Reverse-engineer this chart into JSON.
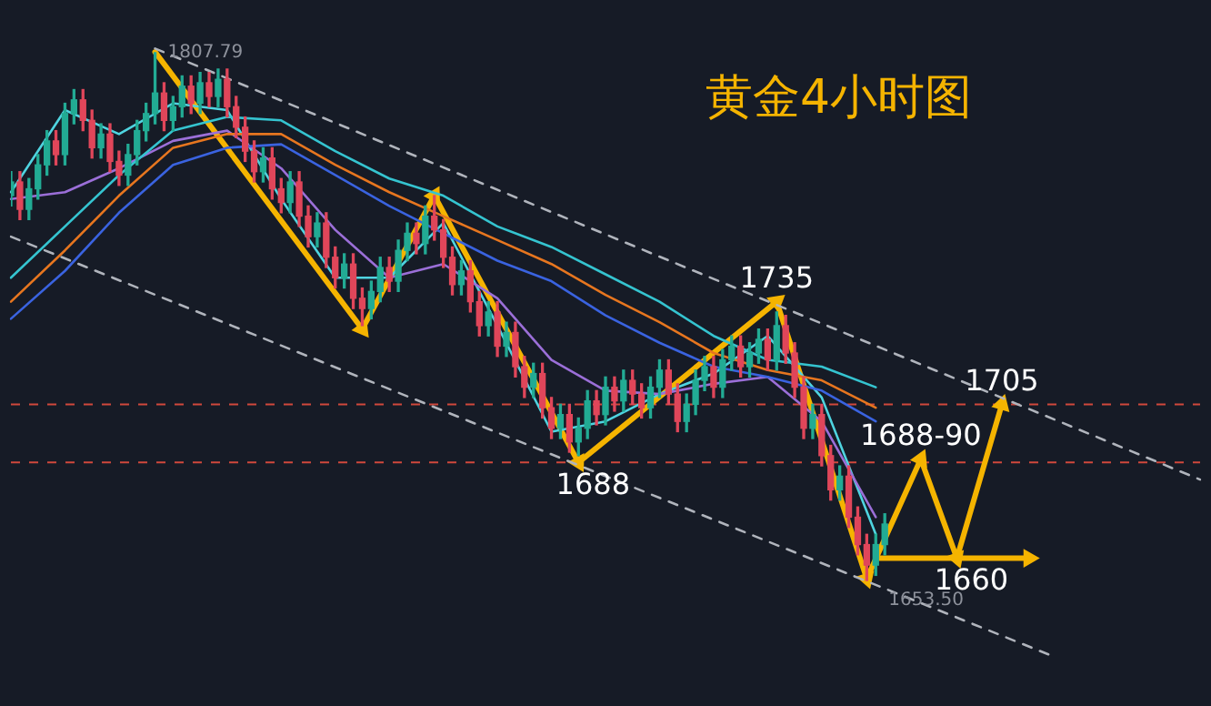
{
  "chart_data": {
    "type": "candlestick",
    "title": "黄金4小时图",
    "categories": [
      null,
      null,
      null,
      null,
      null,
      null,
      null,
      null,
      null,
      null,
      null,
      null,
      null,
      null,
      null,
      null,
      null,
      null,
      null,
      null,
      null,
      null,
      null,
      null,
      null,
      null,
      null,
      null,
      null,
      null,
      null,
      null,
      null,
      null,
      null,
      null,
      null,
      null,
      null,
      null,
      null,
      null,
      null,
      null,
      null,
      null,
      null,
      null,
      null,
      null,
      null,
      null,
      null,
      null,
      null,
      null,
      null,
      null,
      null,
      null,
      null,
      null,
      null,
      null,
      null,
      null,
      null,
      null,
      null,
      null,
      null,
      null,
      null,
      null,
      null,
      null,
      null,
      null,
      null,
      null,
      null,
      null,
      null,
      null,
      null,
      null,
      null,
      null,
      null,
      null,
      null,
      null,
      null,
      null,
      null,
      null,
      null,
      null,
      null,
      null,
      null,
      null,
      null,
      null,
      null,
      null,
      null,
      null,
      null,
      null,
      null,
      null,
      null,
      null,
      null,
      null,
      null,
      null,
      null,
      null,
      null,
      null,
      null,
      null,
      null,
      null,
      null,
      null,
      null,
      null,
      null,
      null,
      null
    ],
    "ohlc": [
      [
        1766,
        1773,
        1763,
        1770
      ],
      [
        1770,
        1773,
        1759,
        1762
      ],
      [
        1762,
        1771,
        1759,
        1768
      ],
      [
        1768,
        1778,
        1765,
        1775
      ],
      [
        1775,
        1785,
        1772,
        1782
      ],
      [
        1782,
        1785,
        1775,
        1778
      ],
      [
        1778,
        1793,
        1775,
        1790
      ],
      [
        1790,
        1797,
        1787,
        1794
      ],
      [
        1794,
        1797,
        1785,
        1788
      ],
      [
        1788,
        1791,
        1777,
        1780
      ],
      [
        1780,
        1787,
        1777,
        1784
      ],
      [
        1784,
        1787,
        1773,
        1776
      ],
      [
        1776,
        1779,
        1769,
        1772
      ],
      [
        1772,
        1781,
        1769,
        1778
      ],
      [
        1778,
        1788,
        1775,
        1785
      ],
      [
        1785,
        1793,
        1782,
        1790
      ],
      [
        1790,
        1807.79,
        1787,
        1796
      ],
      [
        1796,
        1799,
        1785,
        1788
      ],
      [
        1788,
        1795,
        1785,
        1792
      ],
      [
        1792,
        1801,
        1789,
        1798
      ],
      [
        1798,
        1801,
        1790,
        1793
      ],
      [
        1793,
        1802,
        1790,
        1799
      ],
      [
        1799,
        1802,
        1792,
        1795
      ],
      [
        1795,
        1803,
        1792,
        1800
      ],
      [
        1800,
        1803,
        1789,
        1792
      ],
      [
        1792,
        1795,
        1783,
        1786
      ],
      [
        1786,
        1789,
        1776,
        1779
      ],
      [
        1779,
        1782,
        1770,
        1773
      ],
      [
        1773,
        1780,
        1770,
        1777
      ],
      [
        1777,
        1780,
        1765,
        1768
      ],
      [
        1768,
        1771,
        1761,
        1764
      ],
      [
        1764,
        1773,
        1761,
        1770
      ],
      [
        1770,
        1773,
        1757,
        1760
      ],
      [
        1760,
        1763,
        1751,
        1754
      ],
      [
        1754,
        1761,
        1751,
        1758
      ],
      [
        1758,
        1761,
        1745,
        1748
      ],
      [
        1748,
        1751,
        1739,
        1742
      ],
      [
        1742,
        1749,
        1739,
        1746
      ],
      [
        1746,
        1749,
        1733,
        1736
      ],
      [
        1736,
        1739,
        1728,
        1733
      ],
      [
        1733,
        1741,
        1730,
        1738
      ],
      [
        1738,
        1748,
        1735,
        1745
      ],
      [
        1745,
        1748,
        1738,
        1741
      ],
      [
        1741,
        1753,
        1738,
        1750
      ],
      [
        1750,
        1758,
        1747,
        1755
      ],
      [
        1755,
        1758,
        1749,
        1752
      ],
      [
        1752,
        1763,
        1749,
        1760
      ],
      [
        1760,
        1766,
        1753,
        1756
      ],
      [
        1756,
        1759,
        1745,
        1748
      ],
      [
        1748,
        1751,
        1737,
        1740
      ],
      [
        1740,
        1747,
        1737,
        1744
      ],
      [
        1744,
        1747,
        1732,
        1735
      ],
      [
        1735,
        1738,
        1725,
        1728
      ],
      [
        1728,
        1735,
        1725,
        1732
      ],
      [
        1732,
        1735,
        1719,
        1722
      ],
      [
        1722,
        1729,
        1719,
        1726
      ],
      [
        1726,
        1729,
        1713,
        1716
      ],
      [
        1716,
        1719,
        1707,
        1710
      ],
      [
        1710,
        1717,
        1707,
        1714
      ],
      [
        1714,
        1717,
        1701,
        1704
      ],
      [
        1704,
        1707,
        1695,
        1698
      ],
      [
        1698,
        1705,
        1695,
        1702
      ],
      [
        1702,
        1705,
        1691,
        1694
      ],
      [
        1694,
        1701,
        1690,
        1698
      ],
      [
        1698,
        1709,
        1695,
        1706
      ],
      [
        1706,
        1709,
        1699,
        1702
      ],
      [
        1702,
        1713,
        1699,
        1710
      ],
      [
        1710,
        1713,
        1703,
        1706
      ],
      [
        1706,
        1715,
        1703,
        1712
      ],
      [
        1712,
        1715,
        1705,
        1708
      ],
      [
        1708,
        1711,
        1701,
        1704
      ],
      [
        1704,
        1713,
        1701,
        1710
      ],
      [
        1710,
        1718,
        1707,
        1715
      ],
      [
        1715,
        1718,
        1705,
        1708
      ],
      [
        1708,
        1711,
        1697,
        1700
      ],
      [
        1700,
        1708,
        1697,
        1705
      ],
      [
        1705,
        1715,
        1702,
        1712
      ],
      [
        1712,
        1719,
        1709,
        1716
      ],
      [
        1716,
        1719,
        1707,
        1710
      ],
      [
        1710,
        1721,
        1707,
        1718
      ],
      [
        1718,
        1725,
        1715,
        1722
      ],
      [
        1722,
        1725,
        1713,
        1716
      ],
      [
        1716,
        1723,
        1713,
        1720
      ],
      [
        1720,
        1727,
        1717,
        1724
      ],
      [
        1724,
        1727,
        1715,
        1718
      ],
      [
        1718,
        1732,
        1715,
        1728
      ],
      [
        1728,
        1731,
        1717,
        1720
      ],
      [
        1720,
        1723,
        1707,
        1710
      ],
      [
        1710,
        1713,
        1695,
        1698
      ],
      [
        1698,
        1705,
        1695,
        1702
      ],
      [
        1702,
        1705,
        1687,
        1690
      ],
      [
        1690,
        1693,
        1677,
        1680
      ],
      [
        1680,
        1687,
        1677,
        1684
      ],
      [
        1684,
        1687,
        1669,
        1672
      ],
      [
        1672,
        1675,
        1661,
        1664
      ],
      [
        1664,
        1667,
        1653.5,
        1658
      ],
      [
        1658,
        1667,
        1655,
        1664
      ],
      [
        1664,
        1673,
        1661,
        1670
      ],
      null,
      null,
      null,
      null,
      null,
      null,
      null,
      null,
      null,
      null,
      null,
      null,
      null,
      null,
      null,
      null,
      null,
      null,
      null,
      null,
      null,
      null,
      null,
      null,
      null,
      null,
      null,
      null,
      null,
      null,
      null,
      null,
      null,
      null,
      null
    ],
    "colors": [
      "#22ab94",
      "#e0465a",
      "#22ab94",
      "#22ab94",
      "#22ab94",
      "#e0465a",
      "#22ab94",
      "#22ab94",
      "#e0465a",
      "#e0465a",
      "#22ab94",
      "#e0465a",
      "#e0465a",
      "#22ab94",
      "#22ab94",
      "#22ab94",
      "#22ab94",
      "#e0465a",
      "#22ab94",
      "#22ab94",
      "#e0465a",
      "#22ab94",
      "#e0465a",
      "#22ab94",
      "#e0465a",
      "#e0465a",
      "#e0465a",
      "#e0465a",
      "#22ab94",
      "#e0465a",
      "#e0465a",
      "#22ab94",
      "#e0465a",
      "#e0465a",
      "#22ab94",
      "#e0465a",
      "#e0465a",
      "#22ab94",
      "#e0465a",
      "#e0465a",
      "#22ab94",
      "#22ab94",
      "#e0465a",
      "#22ab94",
      "#22ab94",
      "#e0465a",
      "#22ab94",
      "#e0465a",
      "#e0465a",
      "#e0465a",
      "#22ab94",
      "#e0465a",
      "#e0465a",
      "#22ab94",
      "#e0465a",
      "#22ab94",
      "#e0465a",
      "#e0465a",
      "#22ab94",
      "#e0465a",
      "#e0465a",
      "#22ab94",
      "#e0465a",
      "#22ab94",
      "#22ab94",
      "#e0465a",
      "#22ab94",
      "#e0465a",
      "#22ab94",
      "#e0465a",
      "#e0465a",
      "#22ab94",
      "#22ab94",
      "#e0465a",
      "#e0465a",
      "#22ab94",
      "#22ab94",
      "#22ab94",
      "#e0465a",
      "#22ab94",
      "#22ab94",
      "#e0465a",
      "#22ab94",
      "#22ab94",
      "#e0465a",
      "#22ab94",
      "#e0465a",
      "#e0465a",
      "#e0465a",
      "#22ab94",
      "#e0465a",
      "#e0465a",
      "#22ab94",
      "#e0465a",
      "#e0465a",
      "#e0465a",
      "#22ab94",
      "#22ab94",
      null,
      null,
      null,
      null,
      null,
      null,
      null,
      null,
      null,
      null,
      null,
      null,
      null,
      null,
      null,
      null,
      null,
      null,
      null,
      null,
      null,
      null,
      null,
      null,
      null,
      null,
      null,
      null,
      null,
      null,
      null,
      null,
      null,
      null,
      null
    ],
    "series": [
      {
        "type": "line",
        "color": "#35c4d0",
        "values": [
          1742,
          null,
          null,
          null,
          null,
          null,
          1757,
          null,
          null,
          null,
          null,
          null,
          1772,
          null,
          null,
          null,
          null,
          null,
          1785,
          null,
          null,
          null,
          null,
          null,
          1789,
          null,
          null,
          null,
          null,
          null,
          1788,
          null,
          null,
          null,
          null,
          null,
          1779,
          null,
          null,
          null,
          null,
          null,
          1771,
          null,
          null,
          null,
          null,
          null,
          1766,
          null,
          null,
          null,
          null,
          null,
          1757,
          null,
          null,
          null,
          null,
          null,
          1751,
          null,
          null,
          null,
          null,
          null,
          1743,
          null,
          null,
          null,
          null,
          null,
          1735,
          null,
          null,
          null,
          null,
          null,
          1725,
          null,
          null,
          null,
          null,
          null,
          1718,
          null,
          null,
          null,
          null,
          null,
          1716,
          null,
          null,
          null,
          null,
          null,
          1710,
          null,
          null,
          null,
          null,
          null,
          null,
          null,
          null,
          null,
          null,
          null,
          null,
          null,
          null,
          null,
          null,
          null,
          null,
          null,
          null,
          null,
          null,
          null,
          null,
          null,
          null,
          null,
          null,
          null,
          null,
          null,
          null,
          null,
          null,
          null,
          null
        ]
      },
      {
        "type": "line",
        "color": "#e7761f",
        "values": [
          1735,
          null,
          null,
          null,
          null,
          null,
          1750,
          null,
          null,
          null,
          null,
          null,
          1766,
          null,
          null,
          null,
          null,
          null,
          1780,
          null,
          null,
          null,
          null,
          null,
          1784,
          null,
          null,
          null,
          null,
          null,
          1784,
          null,
          null,
          null,
          null,
          null,
          1775,
          null,
          null,
          null,
          null,
          null,
          1767,
          null,
          null,
          null,
          null,
          null,
          1760,
          null,
          null,
          null,
          null,
          null,
          1753,
          null,
          null,
          null,
          null,
          null,
          1746,
          null,
          null,
          null,
          null,
          null,
          1737,
          null,
          null,
          null,
          null,
          null,
          1729,
          null,
          null,
          null,
          null,
          null,
          1720,
          null,
          null,
          null,
          null,
          null,
          1715,
          null,
          null,
          null,
          null,
          null,
          1712,
          null,
          null,
          null,
          null,
          null,
          1704,
          null,
          null,
          null,
          null,
          null,
          null,
          null,
          null,
          null,
          null,
          null,
          null,
          null,
          null,
          null,
          null,
          null,
          null,
          null,
          null,
          null,
          null,
          null,
          null,
          null,
          null,
          null,
          null,
          null,
          null,
          null,
          null,
          null,
          null,
          null,
          null
        ]
      },
      {
        "type": "line",
        "color": "#3a63e0",
        "values": [
          1730,
          null,
          null,
          null,
          null,
          null,
          1744,
          null,
          null,
          null,
          null,
          null,
          1761,
          null,
          null,
          null,
          null,
          null,
          1775,
          null,
          null,
          null,
          null,
          null,
          1780,
          null,
          null,
          null,
          null,
          null,
          1781,
          null,
          null,
          null,
          null,
          null,
          1772,
          null,
          null,
          null,
          null,
          null,
          1763,
          null,
          null,
          null,
          null,
          null,
          1755,
          null,
          null,
          null,
          null,
          null,
          1747,
          null,
          null,
          null,
          null,
          null,
          1741,
          null,
          null,
          null,
          null,
          null,
          1731,
          null,
          null,
          null,
          null,
          null,
          1723,
          null,
          null,
          null,
          null,
          null,
          1716,
          null,
          null,
          null,
          null,
          null,
          1713,
          null,
          null,
          null,
          null,
          null,
          1709,
          null,
          null,
          null,
          null,
          null,
          1700,
          null,
          null,
          null,
          null,
          null,
          null,
          null,
          null,
          null,
          null,
          null,
          null,
          null,
          null,
          null,
          null,
          null,
          null,
          null,
          null,
          null,
          null,
          null,
          null,
          null,
          null,
          null,
          null,
          null,
          null,
          null,
          null,
          null,
          null,
          null,
          null
        ]
      },
      {
        "type": "line",
        "color": "#9b6fd8",
        "values": [
          1765,
          null,
          null,
          null,
          null,
          null,
          1767,
          null,
          null,
          null,
          null,
          null,
          1774,
          null,
          null,
          null,
          null,
          null,
          1782,
          null,
          null,
          null,
          null,
          null,
          1785,
          null,
          null,
          null,
          null,
          null,
          1774,
          null,
          null,
          null,
          null,
          null,
          1756,
          null,
          null,
          null,
          null,
          null,
          1742,
          null,
          null,
          null,
          null,
          null,
          1746,
          null,
          null,
          null,
          null,
          null,
          1736,
          null,
          null,
          null,
          null,
          null,
          1718,
          null,
          null,
          null,
          null,
          null,
          1709,
          null,
          null,
          null,
          null,
          null,
          1708,
          null,
          null,
          null,
          null,
          null,
          1711,
          null,
          null,
          null,
          null,
          null,
          1713,
          null,
          null,
          null,
          null,
          null,
          1700,
          null,
          null,
          null,
          null,
          null,
          1672,
          null,
          null,
          null,
          null,
          null,
          null,
          null,
          null,
          null,
          null,
          null,
          null,
          null,
          null,
          null,
          null,
          null,
          null,
          null,
          null,
          null,
          null,
          null,
          null,
          null,
          null,
          null,
          null,
          null,
          null,
          null,
          null,
          null,
          null,
          null,
          null
        ]
      },
      {
        "type": "line",
        "color": "#4fd4e0",
        "values": [
          1767,
          null,
          null,
          null,
          null,
          null,
          1791,
          null,
          null,
          null,
          null,
          null,
          1784,
          null,
          null,
          null,
          null,
          null,
          1793,
          null,
          null,
          null,
          null,
          null,
          1791,
          null,
          null,
          null,
          null,
          null,
          1765,
          null,
          null,
          null,
          null,
          null,
          1742,
          null,
          null,
          null,
          null,
          null,
          1742,
          null,
          null,
          null,
          null,
          null,
          1758,
          null,
          null,
          null,
          null,
          null,
          1728,
          null,
          null,
          null,
          null,
          null,
          1697,
          null,
          null,
          null,
          null,
          null,
          1700,
          null,
          null,
          null,
          null,
          null,
          1708,
          null,
          null,
          null,
          null,
          null,
          1714,
          null,
          null,
          null,
          null,
          null,
          1725,
          null,
          null,
          null,
          null,
          null,
          1707,
          null,
          null,
          null,
          null,
          null,
          1667,
          null,
          null,
          null,
          null,
          null,
          null,
          null,
          null,
          null,
          null,
          null,
          null,
          null,
          null,
          null,
          null,
          null,
          null,
          null,
          null,
          null,
          null,
          null,
          null,
          null,
          null,
          null,
          null,
          null,
          null,
          null,
          null,
          null,
          null,
          null,
          null
        ]
      },
      {
        "type": "line",
        "color": "#b0b4bc",
        "line_style": "dashed",
        "values": [
          null,
          null,
          null,
          null,
          null,
          null,
          null,
          null,
          null,
          null,
          null,
          null,
          null,
          null,
          null,
          null,
          1809,
          null,
          null,
          null,
          null,
          null,
          null,
          null,
          null,
          null,
          null,
          null,
          null,
          null,
          null,
          null,
          null,
          null,
          null,
          null,
          null,
          null,
          null,
          null,
          null,
          null,
          null,
          null,
          null,
          null,
          null,
          null,
          null,
          null,
          null,
          null,
          null,
          null,
          null,
          null,
          null,
          null,
          null,
          null,
          null,
          null,
          null,
          null,
          null,
          null,
          null,
          null,
          null,
          null,
          null,
          null,
          null,
          null,
          null,
          null,
          null,
          null,
          null,
          null,
          null,
          null,
          null,
          null,
          null,
          null,
          null,
          null,
          null,
          null,
          null,
          null,
          null,
          null,
          null,
          null,
          null,
          null,
          null,
          null,
          null,
          null,
          null,
          null,
          null,
          null,
          null,
          null,
          null,
          null,
          null,
          null,
          null,
          null,
          null,
          null,
          null,
          null,
          null,
          null,
          null,
          null,
          null,
          null,
          null,
          null,
          null,
          null,
          null,
          null,
          null,
          null,
          1683
        ]
      },
      {
        "type": "line",
        "color": "#b0b4bc",
        "line_style": "dashed",
        "values": [
          1754,
          null,
          null,
          null,
          null,
          null,
          null,
          null,
          null,
          null,
          null,
          null,
          null,
          null,
          null,
          null,
          null,
          null,
          null,
          null,
          null,
          null,
          null,
          null,
          null,
          null,
          null,
          null,
          null,
          null,
          null,
          null,
          null,
          null,
          null,
          null,
          null,
          null,
          null,
          null,
          null,
          null,
          null,
          null,
          null,
          null,
          null,
          null,
          null,
          null,
          null,
          null,
          null,
          null,
          null,
          null,
          null,
          null,
          null,
          null,
          null,
          null,
          null,
          null,
          null,
          null,
          null,
          null,
          null,
          null,
          null,
          null,
          null,
          null,
          null,
          null,
          null,
          null,
          null,
          null,
          null,
          null,
          null,
          null,
          null,
          null,
          null,
          null,
          null,
          null,
          null,
          null,
          null,
          null,
          null,
          null,
          null,
          null,
          null,
          null,
          null,
          null,
          null,
          null,
          null,
          null,
          null,
          null,
          null,
          null,
          null,
          null,
          null,
          null,
          null,
          null,
          1631,
          null,
          null,
          null,
          null,
          null,
          null,
          null,
          null,
          null,
          null,
          null,
          null,
          null,
          null,
          null,
          null
        ]
      },
      {
        "type": "line",
        "color": "#f5b400",
        "marker": "triangle",
        "values": [
          null,
          null,
          null,
          null,
          null,
          null,
          null,
          null,
          null,
          null,
          null,
          null,
          null,
          null,
          null,
          null,
          1808,
          null,
          null,
          null,
          null,
          null,
          null,
          null,
          null,
          null,
          null,
          null,
          null,
          null,
          null,
          null,
          null,
          null,
          null,
          null,
          null,
          null,
          null,
          1727,
          null,
          null,
          null,
          null,
          null,
          null,
          null,
          1766,
          null,
          null,
          null,
          null,
          null,
          null,
          null,
          null,
          null,
          null,
          null,
          null,
          null,
          null,
          null,
          1688,
          null,
          null,
          null,
          null,
          null,
          null,
          null,
          null,
          null,
          null,
          null,
          null,
          null,
          null,
          null,
          null,
          null,
          null,
          null,
          null,
          null,
          1735,
          null,
          null,
          null,
          null,
          null,
          null,
          null,
          null,
          null,
          1654,
          null,
          null,
          null,
          null,
          null,
          1689,
          null,
          null,
          null,
          1660,
          null,
          null,
          null,
          null,
          1705,
          null,
          null,
          null,
          null,
          null,
          null,
          null,
          null,
          null,
          null,
          null,
          null,
          null,
          null,
          null,
          null,
          null,
          null,
          null,
          null,
          null,
          null
        ]
      },
      {
        "type": "line",
        "color": "#f5b400",
        "marker": "triangle",
        "values": [
          null,
          null,
          null,
          null,
          null,
          null,
          null,
          null,
          null,
          null,
          null,
          null,
          null,
          null,
          null,
          null,
          null,
          null,
          null,
          null,
          null,
          null,
          null,
          null,
          null,
          null,
          null,
          null,
          null,
          null,
          null,
          null,
          null,
          null,
          null,
          null,
          null,
          null,
          null,
          null,
          null,
          null,
          null,
          null,
          null,
          null,
          null,
          null,
          null,
          null,
          null,
          null,
          null,
          null,
          null,
          null,
          null,
          null,
          null,
          null,
          null,
          null,
          null,
          null,
          null,
          null,
          null,
          null,
          null,
          null,
          null,
          null,
          null,
          null,
          null,
          null,
          null,
          null,
          null,
          null,
          null,
          null,
          null,
          null,
          null,
          null,
          null,
          null,
          null,
          null,
          null,
          null,
          null,
          null,
          null,
          null,
          1660,
          null,
          null,
          null,
          null,
          null,
          null,
          null,
          null,
          null,
          null,
          null,
          null,
          null,
          null,
          null,
          null,
          1660,
          null,
          null,
          null,
          null,
          null,
          null,
          null,
          null,
          null,
          null,
          null,
          null,
          null,
          null,
          null,
          null,
          null,
          null,
          null
        ]
      }
    ],
    "ref_lines": [
      {
        "axis": "y",
        "value": 1705,
        "color": "#d0483c",
        "line_style": "dashed"
      },
      {
        "axis": "y",
        "value": 1688,
        "color": "#d0483c",
        "line_style": "dashed"
      }
    ],
    "annotations": [
      "1807.79",
      {
        "text": "1735",
        "y": 1735
      },
      {
        "text": "1688",
        "y": 1688
      },
      {
        "text": "1705",
        "y": 1705
      },
      {
        "text": "1688-90",
        "y": 1689
      },
      {
        "text": "1660",
        "y": 1660
      },
      "1653.50"
    ],
    "tick_labels": false,
    "legend": false
  }
}
